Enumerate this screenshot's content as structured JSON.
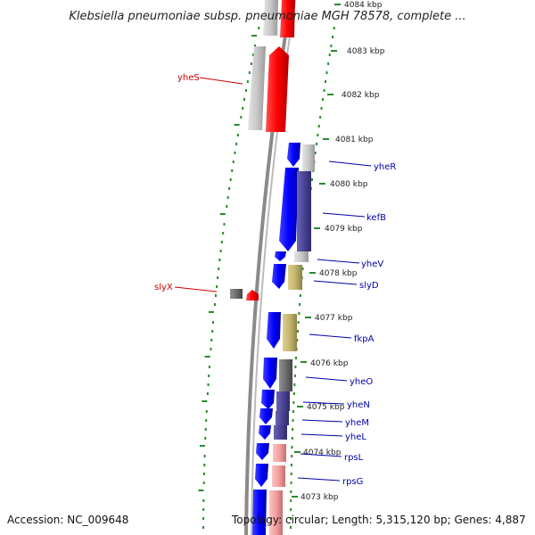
{
  "title": "Klebsiella pneumoniae subsp. pneumoniae MGH 78578, complete ...",
  "accession": "Accession: NC_009648",
  "topology": "Topology: circular; Length: 5,315,120 bp; Genes: 4,887",
  "colors": {
    "forward_gene": "#ff0000",
    "reverse_gene": "#0000ff",
    "backbone": "#888888",
    "gc_tick": "#2b8a2b",
    "label_forward": "#cc0000",
    "label_reverse": "#0000aa",
    "cog_gray": "#c8c8c8",
    "cog_purple": "#4b4496",
    "cog_khaki": "#c4b56c",
    "cog_pink": "#f2a0a0",
    "cog_dark": "#6e6e6e"
  },
  "kbp_ticks": [
    "4084 kbp",
    "4083 kbp",
    "4082 kbp",
    "4081 kbp",
    "4080 kbp",
    "4079 kbp",
    "4078 kbp",
    "4077 kbp",
    "4076 kbp",
    "4075 kbp",
    "4074 kbp",
    "4073 kbp"
  ],
  "labels_forward": [
    "yheS",
    "slyX"
  ],
  "labels_reverse": [
    "yheR",
    "kefB",
    "yheV",
    "slyD",
    "fkpA",
    "yheO",
    "yheN",
    "yheM",
    "yheL",
    "rpsL",
    "rpsG"
  ]
}
